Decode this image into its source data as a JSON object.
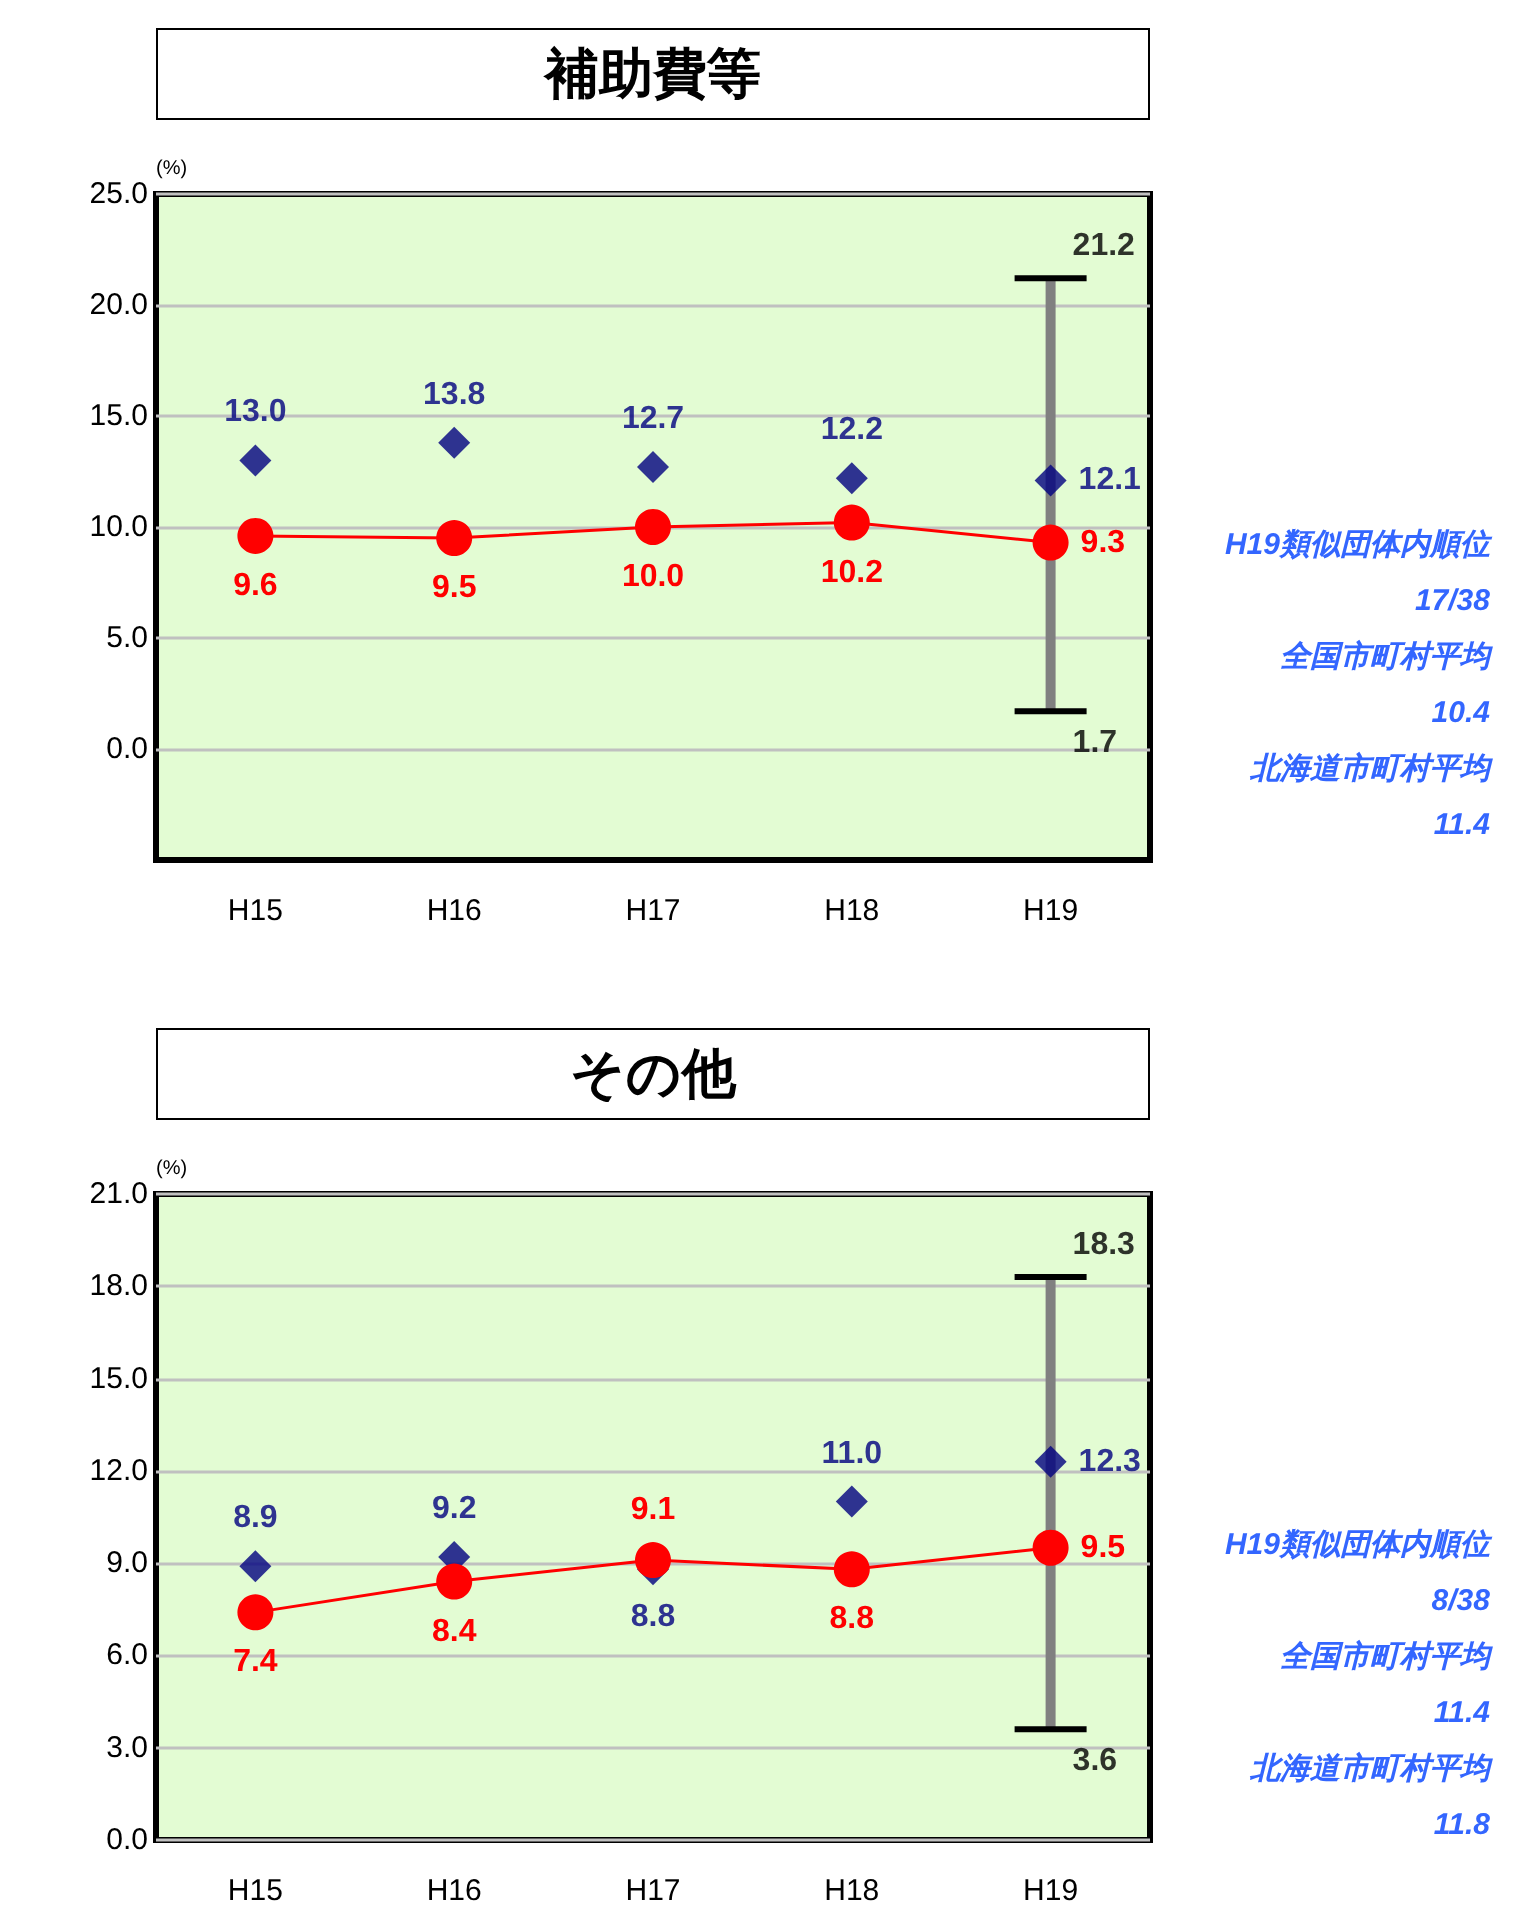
{
  "chart_data": [
    {
      "type": "line",
      "title": "補助費等",
      "ylabel": "(%)",
      "categories": [
        "H15",
        "H16",
        "H17",
        "H18",
        "H19"
      ],
      "ylim": [
        -5,
        25
      ],
      "yticks": [
        {
          "value": 0,
          "label": "0.0"
        },
        {
          "value": 5,
          "label": "5.0"
        },
        {
          "value": 10,
          "label": "10.0"
        },
        {
          "value": 15,
          "label": "15.0"
        },
        {
          "value": 20,
          "label": "20.0"
        },
        {
          "value": 25,
          "label": "25.0"
        }
      ],
      "grid": "y",
      "series": [
        {
          "type": "scatter",
          "color": "#000080",
          "marker": "diamond",
          "values": [
            13.0,
            13.8,
            12.7,
            12.2,
            12.1
          ],
          "value_labels": [
            "13.0",
            "13.8",
            "12.7",
            "12.2",
            "12.1"
          ],
          "errors": [
            null,
            null,
            null,
            null,
            [
              1.7,
              21.2
            ]
          ]
        },
        {
          "color": "#ff0000",
          "marker": "circle",
          "values": [
            9.6,
            9.5,
            10.0,
            10.2,
            9.3
          ],
          "value_labels": [
            "9.6",
            "9.5",
            "10.0",
            "10.2",
            "9.3"
          ]
        }
      ],
      "annotations": [
        {
          "text": "21.2",
          "x": "H19",
          "y": 21.2
        },
        {
          "text": "1.7",
          "x": "H19",
          "y": 1.7
        },
        "H19類似団体内順位",
        "17/38",
        "全国市町村平均",
        "10.4",
        "北海道市町村平均",
        "11.4"
      ]
    },
    {
      "type": "line",
      "title": "その他",
      "ylabel": "(%)",
      "categories": [
        "H15",
        "H16",
        "H17",
        "H18",
        "H19"
      ],
      "ylim": [
        0,
        21
      ],
      "yticks": [
        {
          "value": 0,
          "label": "0.0"
        },
        {
          "value": 3,
          "label": "3.0"
        },
        {
          "value": 6,
          "label": "6.0"
        },
        {
          "value": 9,
          "label": "9.0"
        },
        {
          "value": 12,
          "label": "12.0"
        },
        {
          "value": 15,
          "label": "15.0"
        },
        {
          "value": 18,
          "label": "18.0"
        },
        {
          "value": 21,
          "label": "21.0"
        }
      ],
      "grid": "y",
      "series": [
        {
          "type": "scatter",
          "color": "#000080",
          "marker": "diamond",
          "values": [
            8.9,
            9.2,
            8.8,
            11.0,
            12.3
          ],
          "value_labels": [
            "8.9",
            "9.2",
            "8.8",
            "11.0",
            "12.3"
          ],
          "errors": [
            null,
            null,
            null,
            null,
            [
              3.6,
              18.3
            ]
          ]
        },
        {
          "color": "#ff0000",
          "marker": "circle",
          "values": [
            7.4,
            8.4,
            9.1,
            8.8,
            9.5
          ],
          "value_labels": [
            "7.4",
            "8.4",
            "9.1",
            "8.8",
            "9.5"
          ]
        }
      ],
      "annotations": [
        {
          "text": "18.3",
          "x": "H19",
          "y": 18.3
        },
        {
          "text": "3.6",
          "x": "H19",
          "y": 3.6
        },
        "H19類似団体内順位",
        "8/38",
        "全国市町村平均",
        "11.4",
        "北海道市町村平均",
        "11.8"
      ]
    }
  ]
}
